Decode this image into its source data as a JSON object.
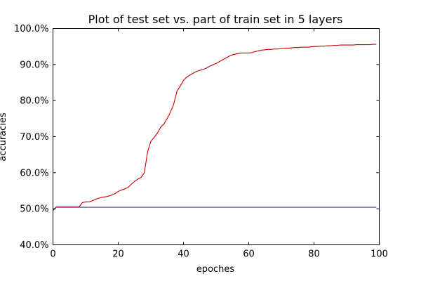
{
  "chart_data": {
    "type": "line",
    "title": "Plot of test set vs. part of train set in 5 layers",
    "xlabel": "epoches",
    "ylabel": "accuracies",
    "xlim": [
      0,
      100
    ],
    "ylim": [
      40,
      100
    ],
    "x_ticks": [
      0,
      20,
      40,
      60,
      80,
      100
    ],
    "y_ticks": [
      40,
      50,
      60,
      70,
      80,
      90,
      100
    ],
    "y_tick_labels": [
      "40.0%",
      "50.0%",
      "60.0%",
      "70.0%",
      "80.0%",
      "90.0%",
      "100.0%"
    ],
    "grid": false,
    "legend": false,
    "series": [
      {
        "color": "#cc0000",
        "x": [
          0,
          1,
          2,
          3,
          4,
          5,
          6,
          7,
          8,
          9,
          10,
          11,
          12,
          13,
          14,
          15,
          16,
          17,
          18,
          19,
          20,
          21,
          22,
          23,
          24,
          25,
          26,
          27,
          28,
          29,
          30,
          31,
          32,
          33,
          34,
          35,
          36,
          37,
          38,
          39,
          40,
          41,
          42,
          43,
          44,
          45,
          46,
          47,
          48,
          49,
          50,
          51,
          52,
          53,
          54,
          55,
          56,
          57,
          58,
          59,
          60,
          61,
          62,
          63,
          64,
          65,
          66,
          67,
          68,
          69,
          70,
          71,
          72,
          73,
          74,
          75,
          76,
          77,
          78,
          79,
          80,
          81,
          82,
          83,
          84,
          85,
          86,
          87,
          88,
          89,
          90,
          91,
          92,
          93,
          94,
          95,
          96,
          97,
          98,
          99
        ],
        "values": [
          49.6,
          50.5,
          50.5,
          50.5,
          50.5,
          50.5,
          50.5,
          50.5,
          50.5,
          51.7,
          51.9,
          51.9,
          52.2,
          52.6,
          52.9,
          53.2,
          53.3,
          53.5,
          53.8,
          54.2,
          54.8,
          55.2,
          55.5,
          55.9,
          56.8,
          57.6,
          58.2,
          58.7,
          60.0,
          65.8,
          68.7,
          69.8,
          71.0,
          72.6,
          73.5,
          75.0,
          76.8,
          79.0,
          82.6,
          84.0,
          85.6,
          86.5,
          87.1,
          87.6,
          88.1,
          88.4,
          88.6,
          89.0,
          89.5,
          89.9,
          90.3,
          90.8,
          91.3,
          91.8,
          92.3,
          92.7,
          92.9,
          93.1,
          93.2,
          93.2,
          93.2,
          93.3,
          93.6,
          93.8,
          94.0,
          94.1,
          94.2,
          94.2,
          94.3,
          94.3,
          94.4,
          94.5,
          94.5,
          94.6,
          94.7,
          94.7,
          94.8,
          94.8,
          94.8,
          94.9,
          95.0,
          95.0,
          95.1,
          95.1,
          95.2,
          95.2,
          95.3,
          95.3,
          95.4,
          95.4,
          95.4,
          95.4,
          95.4,
          95.5,
          95.5,
          95.5,
          95.5,
          95.5,
          95.6,
          95.6
        ]
      },
      {
        "color": "#3333aa",
        "x": [
          0,
          1,
          2,
          3,
          4,
          5,
          6,
          7,
          8,
          9,
          10,
          20,
          30,
          40,
          50,
          60,
          70,
          80,
          90,
          99
        ],
        "values": [
          49.5,
          50.4,
          50.4,
          50.4,
          50.4,
          50.4,
          50.4,
          50.4,
          50.4,
          50.4,
          50.4,
          50.4,
          50.4,
          50.4,
          50.4,
          50.4,
          50.4,
          50.4,
          50.4,
          50.4
        ]
      }
    ]
  }
}
